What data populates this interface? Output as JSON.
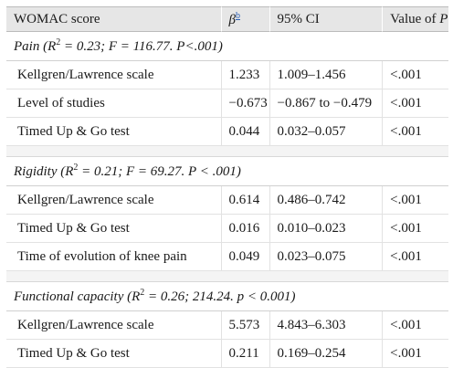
{
  "header": {
    "col1": "WOMAC score",
    "col2_symbol": "β",
    "col2_ref": "b",
    "col3": "95% CI",
    "col4_text": "Value of ",
    "col4_ital": "P"
  },
  "sections": [
    {
      "title_pre": "Pain (R",
      "title_sup": "2",
      "title_post": " = 0.23; F = 116.77. P<.001)",
      "rows": [
        {
          "variable": "Kellgren/Lawrence scale",
          "beta": "1.233",
          "ci": "1.009–1.456",
          "p": "<.001"
        },
        {
          "variable": "Level of studies",
          "beta": "−0.673",
          "ci": "−0.867 to −0.479",
          "p": "<.001"
        },
        {
          "variable": "Timed Up & Go test",
          "beta": "0.044",
          "ci": "0.032–0.057",
          "p": "<.001"
        }
      ]
    },
    {
      "title_pre": "Rigidity (R",
      "title_sup": "2",
      "title_post": " = 0.21; F = 69.27. P < .001)",
      "rows": [
        {
          "variable": "Kellgren/Lawrence scale",
          "beta": "0.614",
          "ci": "0.486–0.742",
          "p": "<.001"
        },
        {
          "variable": "Timed Up & Go test",
          "beta": "0.016",
          "ci": "0.010–0.023",
          "p": "<.001"
        },
        {
          "variable": "Time of evolution of knee pain",
          "beta": "0.049",
          "ci": "0.023–0.075",
          "p": "<.001"
        }
      ]
    },
    {
      "title_pre": "Functional capacity (R",
      "title_sup": "2",
      "title_post": " = 0.26; 214.24. p < 0.001)",
      "rows": [
        {
          "variable": "Kellgren/Lawrence scale",
          "beta": "5.573",
          "ci": "4.843–6.303",
          "p": "<.001"
        },
        {
          "variable": "Timed Up & Go test",
          "beta": "0.211",
          "ci": "0.169–0.254",
          "p": "<.001"
        }
      ]
    }
  ]
}
